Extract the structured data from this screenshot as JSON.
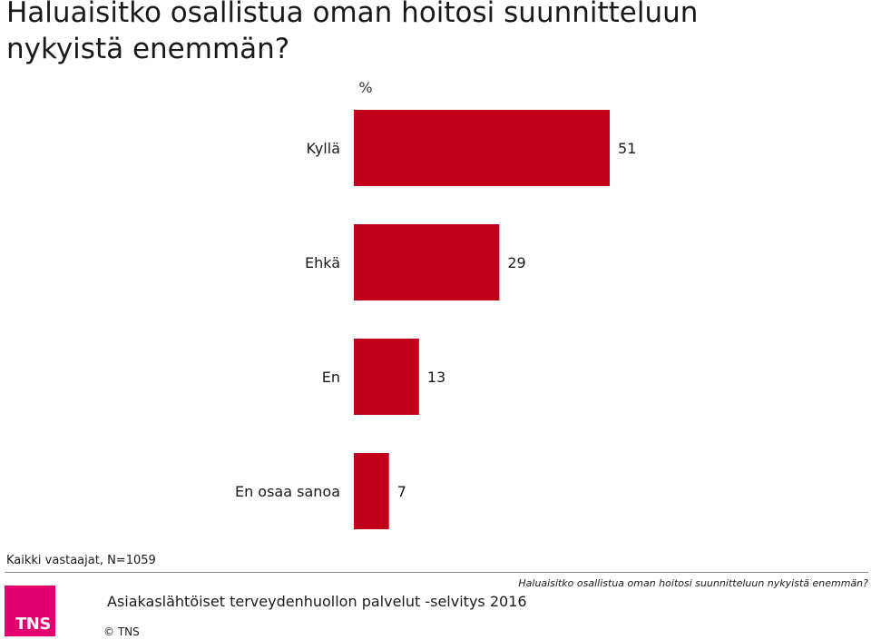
{
  "title": "Haluaisitko osallistua oman hoitosi suunnitteluun nykyistä enemmän?",
  "chart_data": {
    "type": "bar",
    "orientation": "horizontal",
    "unit_label": "%",
    "categories": [
      "Kyllä",
      "Ehkä",
      "En",
      "En osaa sanoa"
    ],
    "values": [
      51,
      29,
      13,
      7
    ],
    "bar_color": "#c0001a",
    "grid": false,
    "legend": "none"
  },
  "base_note": "Kaikki vastaajat, N=1059",
  "footer": {
    "logo_text": "TNS",
    "logo_color": "#e4006f",
    "survey_name": "Asiakaslähtöiset terveydenhuollon palvelut -selvitys 2016",
    "copyright": "© TNS",
    "question": "Haluaisitko osallistua oman hoitosi suunnitteluun nykyistä enemmän?"
  }
}
